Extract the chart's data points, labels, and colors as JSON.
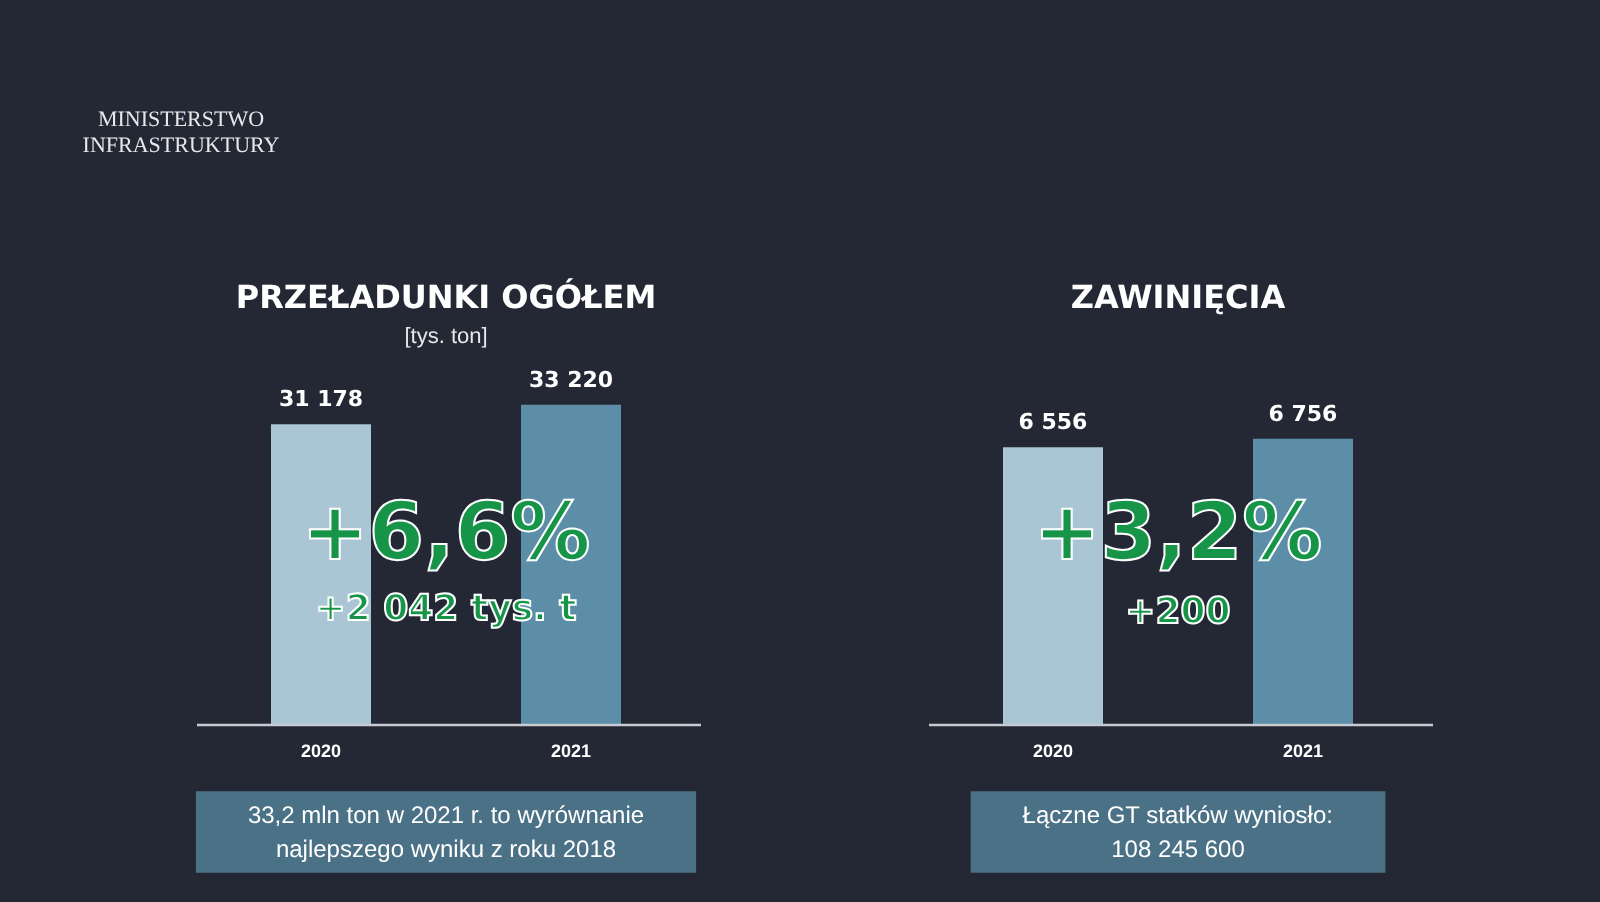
{
  "chart_data": [
    {
      "type": "bar",
      "title": "PRZEŁADUNKI OGÓŁEM",
      "subtitle": "[tys. ton]",
      "categories": [
        "2020",
        "2021"
      ],
      "values": [
        31178,
        33220
      ],
      "colors": [
        "#aac5d3",
        "#5d8ea8"
      ],
      "value_labels": [
        "31 178",
        "33 220"
      ],
      "tick_labels": "x",
      "annotations": [
        "+6,6%",
        "+2 042 tys. t",
        "33,2 mln ton w 2021 r. to wyrównanie\nnajlepszego wyniku z roku 2018",
        "MINISTERSTWO\nINFRASTRUKTURY"
      ]
    },
    {
      "type": "bar",
      "title": "ZAWINIĘCIA",
      "categories": [
        "2020",
        "2021"
      ],
      "values": [
        6556,
        6756
      ],
      "colors": [
        "#aac5d3",
        "#5d8ea8"
      ],
      "value_labels": [
        "6 556",
        "6 756"
      ],
      "tick_labels": "x",
      "annotations": [
        "+3,2%",
        "+200",
        "Łączne GT statków wyniosło:\n108 245 600"
      ]
    }
  ]
}
